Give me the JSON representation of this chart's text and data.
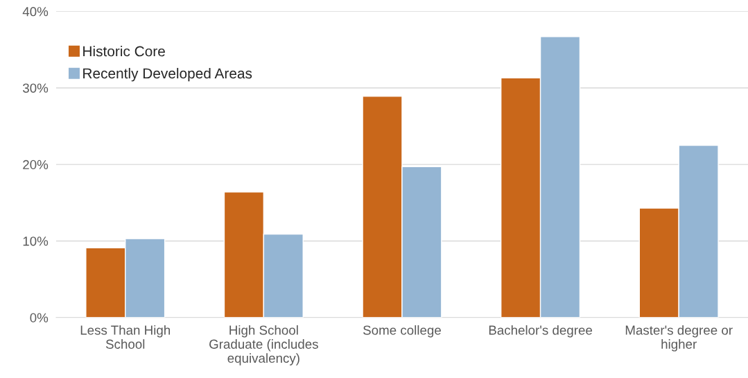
{
  "chart_data": {
    "type": "bar",
    "categories": [
      "Less Than High\nSchool",
      "High School\nGraduate (includes\nequivalency)",
      "Some college",
      "Bachelor's degree",
      "Master's degree or\nhigher"
    ],
    "series": [
      {
        "name": "Historic Core",
        "color": "#c9671a",
        "values": [
          9.1,
          16.4,
          28.9,
          31.3,
          14.3
        ]
      },
      {
        "name": "Recently Developed Areas",
        "color": "#94b5d3",
        "values": [
          10.3,
          10.9,
          19.7,
          36.7,
          22.5
        ]
      }
    ],
    "ylim": [
      0,
      40
    ],
    "yticks": [
      {
        "value": 0,
        "label": "0%"
      },
      {
        "value": 10,
        "label": "10%"
      },
      {
        "value": 20,
        "label": "20%"
      },
      {
        "value": 30,
        "label": "30%"
      },
      {
        "value": 40,
        "label": "40%"
      }
    ],
    "grid": "y",
    "legend": "top left"
  }
}
